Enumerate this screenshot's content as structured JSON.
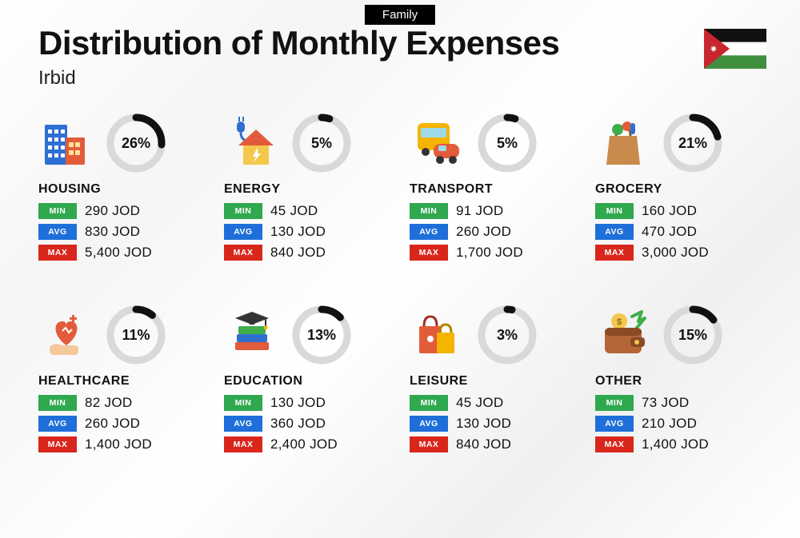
{
  "tag": "Family",
  "title": "Distribution of Monthly Expenses",
  "subtitle": "Irbid",
  "currency": "JOD",
  "labels": {
    "min": "MIN",
    "avg": "AVG",
    "max": "MAX"
  },
  "ring": {
    "radius": 32,
    "stroke_width": 9,
    "track_color": "#d9d9d9",
    "fill_color": "#111111"
  },
  "flag": {
    "colors": {
      "top": "#111111",
      "mid": "#ffffff",
      "bot": "#3f8f3f",
      "tri": "#c8262e",
      "star": "#ffffff"
    }
  },
  "categories": [
    {
      "key": "housing",
      "name": "HOUSING",
      "pct": 26,
      "min": "290",
      "avg": "830",
      "max": "5,400",
      "icon": "housing"
    },
    {
      "key": "energy",
      "name": "ENERGY",
      "pct": 5,
      "min": "45",
      "avg": "130",
      "max": "840",
      "icon": "energy"
    },
    {
      "key": "transport",
      "name": "TRANSPORT",
      "pct": 5,
      "min": "91",
      "avg": "260",
      "max": "1,700",
      "icon": "transport"
    },
    {
      "key": "grocery",
      "name": "GROCERY",
      "pct": 21,
      "min": "160",
      "avg": "470",
      "max": "3,000",
      "icon": "grocery"
    },
    {
      "key": "healthcare",
      "name": "HEALTHCARE",
      "pct": 11,
      "min": "82",
      "avg": "260",
      "max": "1,400",
      "icon": "healthcare"
    },
    {
      "key": "education",
      "name": "EDUCATION",
      "pct": 13,
      "min": "130",
      "avg": "360",
      "max": "2,400",
      "icon": "education"
    },
    {
      "key": "leisure",
      "name": "LEISURE",
      "pct": 3,
      "min": "45",
      "avg": "130",
      "max": "840",
      "icon": "leisure"
    },
    {
      "key": "other",
      "name": "OTHER",
      "pct": 15,
      "min": "73",
      "avg": "210",
      "max": "1,400",
      "icon": "other"
    }
  ],
  "icons": {
    "housing": {
      "type": "buildings",
      "c1": "#2f6fd1",
      "c2": "#e25c3b"
    },
    "energy": {
      "type": "house-bolt",
      "roof": "#e25c3b",
      "wall": "#f4c84b",
      "bolt": "#ffffff",
      "plug": "#2f6fd1"
    },
    "transport": {
      "type": "bus-car",
      "bus": "#f4b400",
      "car": "#e25c3b",
      "win": "#9fd9e8"
    },
    "grocery": {
      "type": "bag",
      "bag": "#c98a4b",
      "veg1": "#3fae4a",
      "veg2": "#e25c3b",
      "veg3": "#2f6fd1"
    },
    "healthcare": {
      "type": "heart-hand",
      "heart": "#e25c3b",
      "hand": "#f4c89b",
      "plus": "#e25c3b"
    },
    "education": {
      "type": "grad-books",
      "cap": "#333333",
      "b1": "#3fae4a",
      "b2": "#2f6fd1",
      "b3": "#e25c3b"
    },
    "leisure": {
      "type": "shopping",
      "bag1": "#e25c3b",
      "bag2": "#f4b400"
    },
    "other": {
      "type": "wallet",
      "body": "#b56636",
      "flap": "#8a4a26",
      "coin": "#f4c84b",
      "arrow": "#3fae4a"
    }
  }
}
